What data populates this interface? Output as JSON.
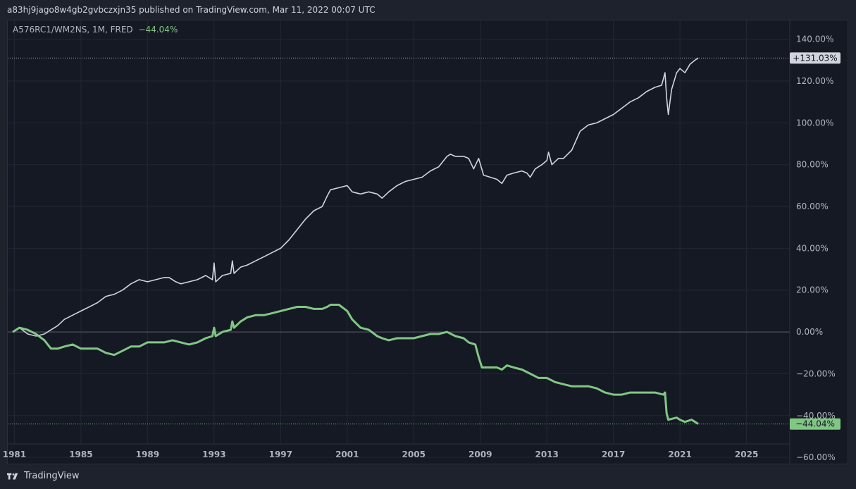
{
  "header": {
    "publish_text": "a83hj9jago8w4gb2gvbczxjn35 published on TradingView.com, Mar 11, 2022 00:07 UTC"
  },
  "legend": {
    "symbol": "A576RC1/WM2NS, 1M, FRED",
    "change": "−44.04%"
  },
  "footer": {
    "brand": "TradingView",
    "logo_icon": "tradingview-logo-icon"
  },
  "colors": {
    "background": "#151924",
    "grid": "#232735",
    "white_series": "#d1d4dc",
    "green_series": "#81c784",
    "axis_text": "#b2b5be"
  },
  "chart_data": {
    "type": "line",
    "x_axis": {
      "ticks": [
        "1981",
        "1985",
        "1989",
        "1993",
        "1997",
        "2001",
        "2005",
        "2009",
        "2013",
        "2017",
        "2021",
        "2025"
      ],
      "range": [
        1980.6,
        2027.6
      ]
    },
    "y_axis": {
      "ticks": [
        "140.00%",
        "120.00%",
        "100.00%",
        "80.00%",
        "60.00%",
        "40.00%",
        "20.00%",
        "0.00%",
        "−20.00%",
        "−40.00%",
        "−60.00%"
      ],
      "range": [
        -63,
        149
      ],
      "unit": "%",
      "position": "right"
    },
    "grid": true,
    "series": [
      {
        "color": "#d1d4dc",
        "last_value_label": "+131.03%",
        "last_value": 131.03,
        "points": [
          [
            1980.9,
            0
          ],
          [
            1981.3,
            2
          ],
          [
            1981.8,
            -1
          ],
          [
            1982.3,
            -2
          ],
          [
            1982.8,
            -1
          ],
          [
            1983.2,
            1
          ],
          [
            1983.6,
            3
          ],
          [
            1984.0,
            6
          ],
          [
            1984.5,
            8
          ],
          [
            1985.0,
            10
          ],
          [
            1985.5,
            12
          ],
          [
            1986.0,
            14
          ],
          [
            1986.5,
            17
          ],
          [
            1987.0,
            18
          ],
          [
            1987.5,
            20
          ],
          [
            1988.0,
            23
          ],
          [
            1988.5,
            25
          ],
          [
            1989.0,
            24
          ],
          [
            1989.5,
            25
          ],
          [
            1990.0,
            26
          ],
          [
            1990.3,
            26
          ],
          [
            1990.7,
            24
          ],
          [
            1991.0,
            23
          ],
          [
            1991.5,
            24
          ],
          [
            1992.0,
            25
          ],
          [
            1992.5,
            27
          ],
          [
            1992.9,
            25
          ],
          [
            1993.0,
            33
          ],
          [
            1993.1,
            24
          ],
          [
            1993.5,
            27
          ],
          [
            1994.0,
            28
          ],
          [
            1994.1,
            34
          ],
          [
            1994.2,
            28
          ],
          [
            1994.6,
            31
          ],
          [
            1995.0,
            32
          ],
          [
            1995.5,
            34
          ],
          [
            1996.0,
            36
          ],
          [
            1996.5,
            38
          ],
          [
            1997.0,
            40
          ],
          [
            1997.5,
            44
          ],
          [
            1998.0,
            49
          ],
          [
            1998.5,
            54
          ],
          [
            1999.0,
            58
          ],
          [
            1999.5,
            60
          ],
          [
            1999.8,
            65
          ],
          [
            2000.0,
            68
          ],
          [
            2000.5,
            69
          ],
          [
            2001.0,
            70
          ],
          [
            2001.3,
            67
          ],
          [
            2001.8,
            66
          ],
          [
            2002.3,
            67
          ],
          [
            2002.8,
            66
          ],
          [
            2003.1,
            64
          ],
          [
            2003.5,
            67
          ],
          [
            2004.0,
            70
          ],
          [
            2004.5,
            72
          ],
          [
            2005.0,
            73
          ],
          [
            2005.5,
            74
          ],
          [
            2006.0,
            77
          ],
          [
            2006.5,
            79
          ],
          [
            2007.0,
            84
          ],
          [
            2007.2,
            85
          ],
          [
            2007.5,
            84
          ],
          [
            2008.0,
            84
          ],
          [
            2008.3,
            83
          ],
          [
            2008.6,
            78
          ],
          [
            2008.9,
            83
          ],
          [
            2009.2,
            75
          ],
          [
            2009.6,
            74
          ],
          [
            2010.0,
            73
          ],
          [
            2010.3,
            71
          ],
          [
            2010.6,
            75
          ],
          [
            2011.0,
            76
          ],
          [
            2011.5,
            77
          ],
          [
            2011.8,
            76
          ],
          [
            2012.0,
            74
          ],
          [
            2012.3,
            78
          ],
          [
            2012.7,
            80
          ],
          [
            2013.0,
            82
          ],
          [
            2013.1,
            86
          ],
          [
            2013.3,
            80
          ],
          [
            2013.7,
            83
          ],
          [
            2014.0,
            83
          ],
          [
            2014.5,
            87
          ],
          [
            2015.0,
            96
          ],
          [
            2015.5,
            99
          ],
          [
            2016.0,
            100
          ],
          [
            2016.5,
            102
          ],
          [
            2017.0,
            104
          ],
          [
            2017.5,
            107
          ],
          [
            2018.0,
            110
          ],
          [
            2018.5,
            112
          ],
          [
            2019.0,
            115
          ],
          [
            2019.5,
            117
          ],
          [
            2019.9,
            118
          ],
          [
            2020.1,
            124
          ],
          [
            2020.2,
            112
          ],
          [
            2020.3,
            104
          ],
          [
            2020.5,
            116
          ],
          [
            2020.8,
            124
          ],
          [
            2021.0,
            126
          ],
          [
            2021.3,
            124
          ],
          [
            2021.6,
            128
          ],
          [
            2021.9,
            130
          ],
          [
            2022.1,
            131.03
          ]
        ]
      },
      {
        "color": "#81c784",
        "last_value_label": "−44.04%",
        "last_value": -44.04,
        "points": [
          [
            1980.9,
            0
          ],
          [
            1981.3,
            2
          ],
          [
            1981.8,
            1
          ],
          [
            1982.3,
            -1
          ],
          [
            1982.8,
            -4
          ],
          [
            1983.2,
            -8
          ],
          [
            1983.6,
            -8
          ],
          [
            1984.0,
            -7
          ],
          [
            1984.5,
            -6
          ],
          [
            1985.0,
            -8
          ],
          [
            1985.5,
            -8
          ],
          [
            1986.0,
            -8
          ],
          [
            1986.5,
            -10
          ],
          [
            1987.0,
            -11
          ],
          [
            1987.5,
            -9
          ],
          [
            1988.0,
            -7
          ],
          [
            1988.5,
            -7
          ],
          [
            1989.0,
            -5
          ],
          [
            1989.5,
            -5
          ],
          [
            1990.0,
            -5
          ],
          [
            1990.5,
            -4
          ],
          [
            1991.0,
            -5
          ],
          [
            1991.5,
            -6
          ],
          [
            1992.0,
            -5
          ],
          [
            1992.5,
            -3
          ],
          [
            1992.9,
            -2
          ],
          [
            1993.0,
            2
          ],
          [
            1993.1,
            -2
          ],
          [
            1993.5,
            0
          ],
          [
            1994.0,
            1
          ],
          [
            1994.1,
            5
          ],
          [
            1994.2,
            2
          ],
          [
            1994.6,
            5
          ],
          [
            1995.0,
            7
          ],
          [
            1995.5,
            8
          ],
          [
            1996.0,
            8
          ],
          [
            1996.5,
            9
          ],
          [
            1997.0,
            10
          ],
          [
            1997.5,
            11
          ],
          [
            1998.0,
            12
          ],
          [
            1998.5,
            12
          ],
          [
            1999.0,
            11
          ],
          [
            1999.5,
            11
          ],
          [
            1999.8,
            12
          ],
          [
            2000.0,
            13
          ],
          [
            2000.5,
            13
          ],
          [
            2001.0,
            10
          ],
          [
            2001.3,
            6
          ],
          [
            2001.8,
            2
          ],
          [
            2002.3,
            1
          ],
          [
            2002.8,
            -2
          ],
          [
            2003.1,
            -3
          ],
          [
            2003.5,
            -4
          ],
          [
            2004.0,
            -3
          ],
          [
            2004.5,
            -3
          ],
          [
            2005.0,
            -3
          ],
          [
            2005.5,
            -2
          ],
          [
            2006.0,
            -1
          ],
          [
            2006.5,
            -1
          ],
          [
            2007.0,
            0
          ],
          [
            2007.5,
            -2
          ],
          [
            2008.0,
            -3
          ],
          [
            2008.3,
            -5
          ],
          [
            2008.7,
            -6
          ],
          [
            2008.9,
            -12
          ],
          [
            2009.1,
            -17
          ],
          [
            2009.5,
            -17
          ],
          [
            2010.0,
            -17
          ],
          [
            2010.3,
            -18
          ],
          [
            2010.6,
            -16
          ],
          [
            2011.0,
            -17
          ],
          [
            2011.5,
            -18
          ],
          [
            2012.0,
            -20
          ],
          [
            2012.5,
            -22
          ],
          [
            2013.0,
            -22
          ],
          [
            2013.5,
            -24
          ],
          [
            2014.0,
            -25
          ],
          [
            2014.5,
            -26
          ],
          [
            2015.0,
            -26
          ],
          [
            2015.5,
            -26
          ],
          [
            2016.0,
            -27
          ],
          [
            2016.5,
            -29
          ],
          [
            2017.0,
            -30
          ],
          [
            2017.5,
            -30
          ],
          [
            2018.0,
            -29
          ],
          [
            2018.5,
            -29
          ],
          [
            2019.0,
            -29
          ],
          [
            2019.5,
            -29
          ],
          [
            2020.0,
            -30
          ],
          [
            2020.1,
            -29
          ],
          [
            2020.2,
            -39
          ],
          [
            2020.3,
            -42
          ],
          [
            2020.8,
            -41
          ],
          [
            2021.0,
            -42
          ],
          [
            2021.3,
            -43
          ],
          [
            2021.7,
            -42
          ],
          [
            2022.1,
            -44.04
          ]
        ]
      }
    ]
  }
}
